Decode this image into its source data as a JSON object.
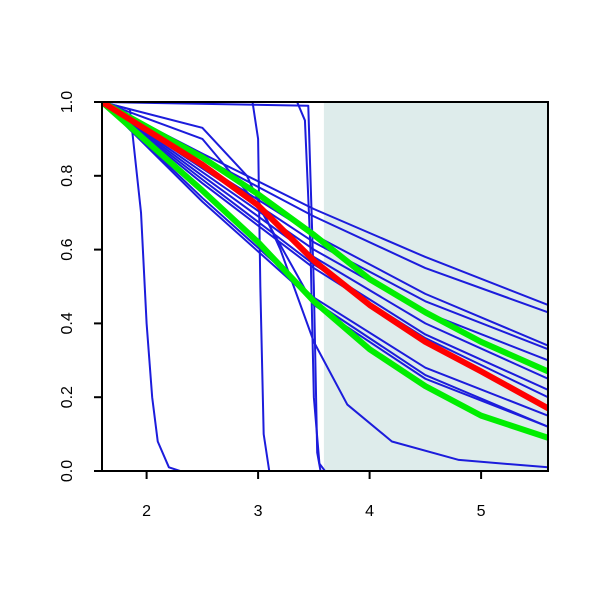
{
  "chart_data": {
    "type": "line",
    "xlim": [
      1.6,
      5.6
    ],
    "xticks": [
      2,
      3,
      4,
      5
    ],
    "ylim": [
      0,
      1
    ],
    "yticks": [
      {
        "value": 0,
        "label": "0.0"
      },
      0.2,
      0.4,
      0.6,
      0.8,
      {
        "value": 1,
        "label": "1.0"
      }
    ],
    "shaded_region": {
      "xlim": [
        3.59,
        5.6
      ],
      "color": "#deeceb"
    },
    "series": [
      {
        "color": "#1c1cdc",
        "x": [
          1.6,
          1.85,
          1.95,
          2.0,
          2.05,
          2.1,
          2.2,
          2.3,
          5.6
        ],
        "values": [
          1,
          0.98,
          0.7,
          0.4,
          0.2,
          0.08,
          0.01,
          0,
          0
        ]
      },
      {
        "color": "#1c1cdc",
        "x": [
          1.6,
          2.95,
          3.0,
          3.02,
          3.05,
          3.1,
          5.6
        ],
        "values": [
          1,
          1,
          0.9,
          0.5,
          0.1,
          0,
          0
        ]
      },
      {
        "color": "#1c1cdc",
        "x": [
          1.6,
          3.35,
          3.42,
          3.47,
          3.5,
          3.55,
          3.6,
          5.6
        ],
        "values": [
          1,
          1,
          0.95,
          0.6,
          0.2,
          0.02,
          0,
          0
        ]
      },
      {
        "color": "#1c1cdc",
        "x": [
          1.6,
          3.45,
          3.5,
          3.53,
          3.56,
          5.6
        ],
        "values": [
          1,
          0.99,
          0.5,
          0.05,
          0,
          0
        ]
      },
      {
        "color": "#1c1cdc",
        "x": [
          1.6,
          2.5,
          2.9,
          3.2,
          3.5,
          3.8,
          4.2,
          4.8,
          5.6
        ],
        "values": [
          1,
          0.93,
          0.8,
          0.6,
          0.35,
          0.18,
          0.08,
          0.03,
          0.01
        ]
      },
      {
        "color": "#1c1cdc",
        "x": [
          1.6,
          2.5,
          3.5,
          4.5,
          5.6
        ],
        "values": [
          1,
          0.86,
          0.71,
          0.58,
          0.45
        ]
      },
      {
        "color": "#1c1cdc",
        "x": [
          1.6,
          2.5,
          3.5,
          4.5,
          5.6
        ],
        "values": [
          1,
          0.85,
          0.69,
          0.55,
          0.43
        ]
      },
      {
        "color": "#1c1cdc",
        "x": [
          1.6,
          2.5,
          3.5,
          4.5,
          5.6
        ],
        "values": [
          1,
          0.83,
          0.64,
          0.48,
          0.34
        ]
      },
      {
        "color": "#1c1cdc",
        "x": [
          1.6,
          2.5,
          3.5,
          4.5,
          5.6
        ],
        "values": [
          1,
          0.82,
          0.62,
          0.46,
          0.33
        ]
      },
      {
        "color": "#1c1cdc",
        "x": [
          1.6,
          2.5,
          3.5,
          4.5,
          5.6
        ],
        "values": [
          1,
          0.81,
          0.6,
          0.43,
          0.3
        ]
      },
      {
        "color": "#1c1cdc",
        "x": [
          1.6,
          2.5,
          3.5,
          4.5,
          5.6
        ],
        "values": [
          1,
          0.8,
          0.58,
          0.4,
          0.25
        ]
      },
      {
        "color": "#1c1cdc",
        "x": [
          1.6,
          2.5,
          3.5,
          4.5,
          5.6
        ],
        "values": [
          1,
          0.79,
          0.56,
          0.37,
          0.22
        ]
      },
      {
        "color": "#1c1cdc",
        "x": [
          1.6,
          2.5,
          3.5,
          4.5,
          5.6
        ],
        "values": [
          1,
          0.78,
          0.55,
          0.36,
          0.2
        ]
      },
      {
        "color": "#1c1cdc",
        "x": [
          1.6,
          2.5,
          3.5,
          4.5,
          5.6
        ],
        "values": [
          1,
          0.74,
          0.47,
          0.28,
          0.15
        ]
      },
      {
        "color": "#1c1cdc",
        "x": [
          1.6,
          2.5,
          3.5,
          4.5,
          5.6
        ],
        "values": [
          1,
          0.73,
          0.46,
          0.26,
          0.12
        ]
      },
      {
        "color": "#1c1cdc",
        "x": [
          1.6,
          2.5,
          3.0,
          3.5,
          4.5,
          5.6
        ],
        "values": [
          1,
          0.9,
          0.72,
          0.45,
          0.25,
          0.12
        ]
      },
      {
        "color": "#00ee00",
        "width": 6,
        "x": [
          1.6,
          2.5,
          3,
          3.5,
          4,
          4.5,
          5,
          5.6
        ],
        "values": [
          1,
          0.76,
          0.62,
          0.46,
          0.33,
          0.23,
          0.15,
          0.09
        ]
      },
      {
        "color": "#00ee00",
        "width": 6,
        "x": [
          1.6,
          2.5,
          3,
          3.5,
          4,
          4.5,
          5,
          5.6
        ],
        "values": [
          1,
          0.85,
          0.75,
          0.64,
          0.52,
          0.43,
          0.35,
          0.27
        ]
      },
      {
        "color": "#ff0000",
        "width": 6,
        "x": [
          1.6,
          2.5,
          3,
          3.5,
          4,
          4.5,
          5,
          5.6
        ],
        "values": [
          1,
          0.83,
          0.72,
          0.57,
          0.45,
          0.35,
          0.27,
          0.17
        ]
      }
    ]
  }
}
